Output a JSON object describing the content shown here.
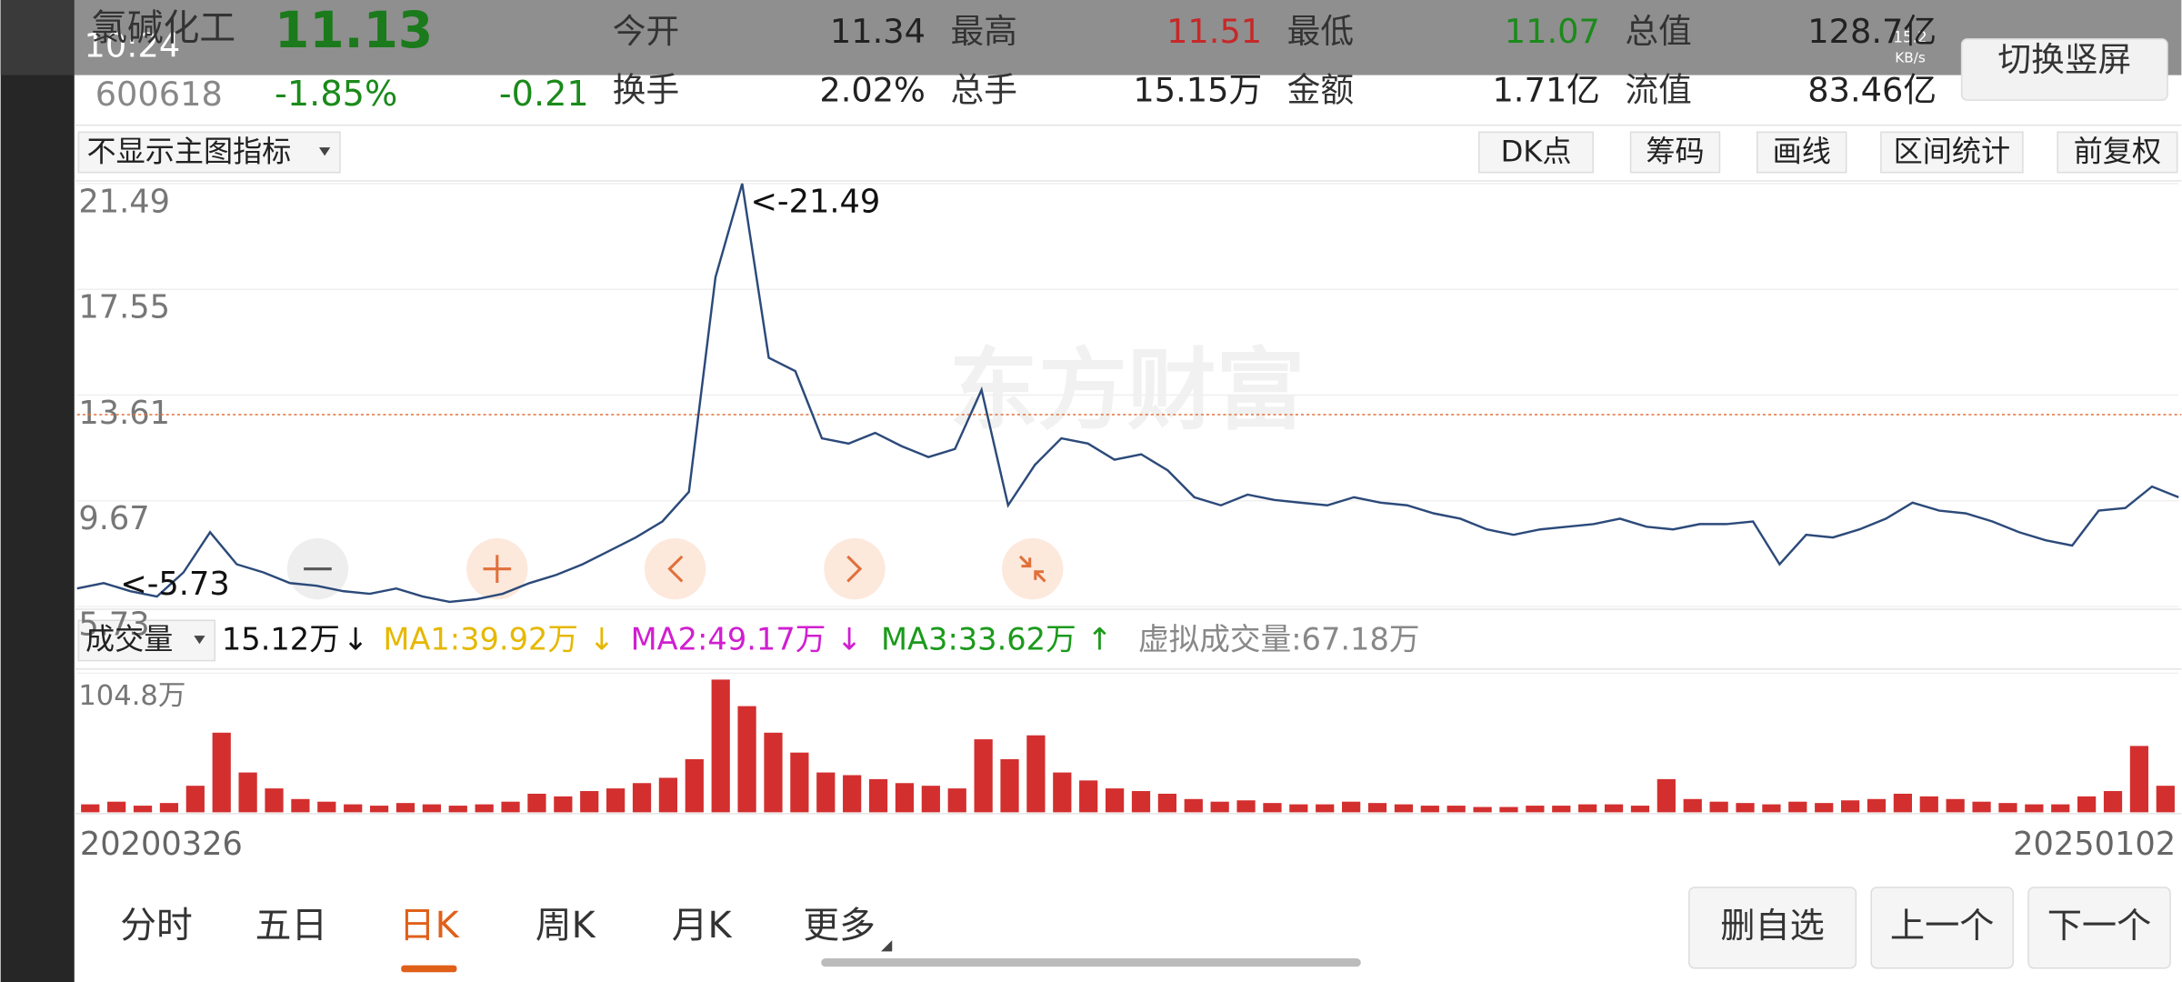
{
  "status": {
    "time": "10:24",
    "speed": "15.2",
    "speed_unit": "KB/s"
  },
  "header": {
    "name": "氯碱化工",
    "price": "11.13",
    "code": "600618",
    "change_pct": "-1.85%",
    "change": "-0.21",
    "switch_button": "切换竖屏",
    "fields": [
      {
        "label": "今开",
        "value": "11.34",
        "color": "#222222"
      },
      {
        "label": "最高",
        "value": "11.51",
        "color": "#c62828"
      },
      {
        "label": "最低",
        "value": "11.07",
        "color": "#1b8a1b"
      },
      {
        "label": "总值",
        "value": "128.7亿",
        "color": "#222222"
      },
      {
        "label": "换手",
        "value": "2.02%",
        "color": "#222222"
      },
      {
        "label": "总手",
        "value": "15.15万",
        "color": "#222222"
      },
      {
        "label": "金额",
        "value": "1.71亿",
        "color": "#222222"
      },
      {
        "label": "流值",
        "value": "83.46亿",
        "color": "#222222"
      }
    ]
  },
  "toolbar": {
    "indicator": "不显示主图指标",
    "buttons": [
      "DK点",
      "筹码",
      "画线",
      "区间统计",
      "前复权"
    ]
  },
  "chart_data": [
    {
      "type": "line",
      "watermark": "东方财富",
      "x_labels": [
        "20200326",
        "20250102"
      ],
      "max_label": "<-21.49",
      "min_label": "<-5.73",
      "color": "#2c4a7a",
      "ref_line": 12.88,
      "ref_color": "#e0703a",
      "ylim": [
        5.73,
        21.49
      ],
      "yticks": [
        21.49,
        17.55,
        13.61,
        9.67,
        5.73
      ],
      "values": [
        6.4,
        6.6,
        6.3,
        6.1,
        7.0,
        8.5,
        7.3,
        7.0,
        6.6,
        6.5,
        6.3,
        6.2,
        6.4,
        6.1,
        5.9,
        6.0,
        6.2,
        6.6,
        6.9,
        7.3,
        7.8,
        8.3,
        8.9,
        10.0,
        18.0,
        21.49,
        15.0,
        14.5,
        12.0,
        11.8,
        12.2,
        11.7,
        11.3,
        11.6,
        13.8,
        9.5,
        11.0,
        12.0,
        11.8,
        11.2,
        11.4,
        10.8,
        9.8,
        9.5,
        9.9,
        9.7,
        9.6,
        9.5,
        9.8,
        9.6,
        9.5,
        9.2,
        9.0,
        8.6,
        8.4,
        8.6,
        8.7,
        8.8,
        9.0,
        8.7,
        8.6,
        8.8,
        8.8,
        8.9,
        7.3,
        8.4,
        8.3,
        8.6,
        9.0,
        9.6,
        9.3,
        9.2,
        8.9,
        8.5,
        8.2,
        8.0,
        9.3,
        9.4,
        10.2,
        9.8
      ]
    },
    {
      "type": "bar",
      "selector": "成交量",
      "current": "15.12万",
      "current_arrow": "↓",
      "legend": [
        {
          "text": "MA1:39.92万",
          "arrow": "↓",
          "color": "#e6b800"
        },
        {
          "text": "MA2:49.17万",
          "arrow": "↓",
          "color": "#d01fd0"
        },
        {
          "text": "MA3:33.62万",
          "arrow": "↑",
          "color": "#1b9a1b"
        }
      ],
      "virtual": "虚拟成交量:67.18万",
      "color": "#d32f2f",
      "ylim": [
        0,
        104.8
      ],
      "yticks": [
        {
          "value": 104.8,
          "label": "104.8万"
        }
      ],
      "values": [
        6,
        8,
        5,
        7,
        20,
        60,
        30,
        18,
        10,
        8,
        6,
        5,
        7,
        6,
        5,
        6,
        8,
        14,
        12,
        16,
        18,
        22,
        26,
        40,
        100,
        80,
        60,
        45,
        30,
        28,
        25,
        22,
        20,
        18,
        55,
        40,
        58,
        30,
        24,
        18,
        16,
        14,
        10,
        8,
        9,
        7,
        6,
        6,
        8,
        7,
        6,
        5,
        5,
        4,
        4,
        5,
        5,
        6,
        6,
        5,
        25,
        10,
        8,
        7,
        6,
        8,
        7,
        9,
        10,
        14,
        12,
        10,
        8,
        7,
        6,
        6,
        12,
        16,
        50,
        20
      ]
    }
  ],
  "tabs": {
    "items": [
      "分时",
      "五日",
      "日K",
      "周K",
      "月K",
      "更多"
    ],
    "active": 2
  },
  "nav_buttons": [
    "删自选",
    "上一个",
    "下一个"
  ]
}
